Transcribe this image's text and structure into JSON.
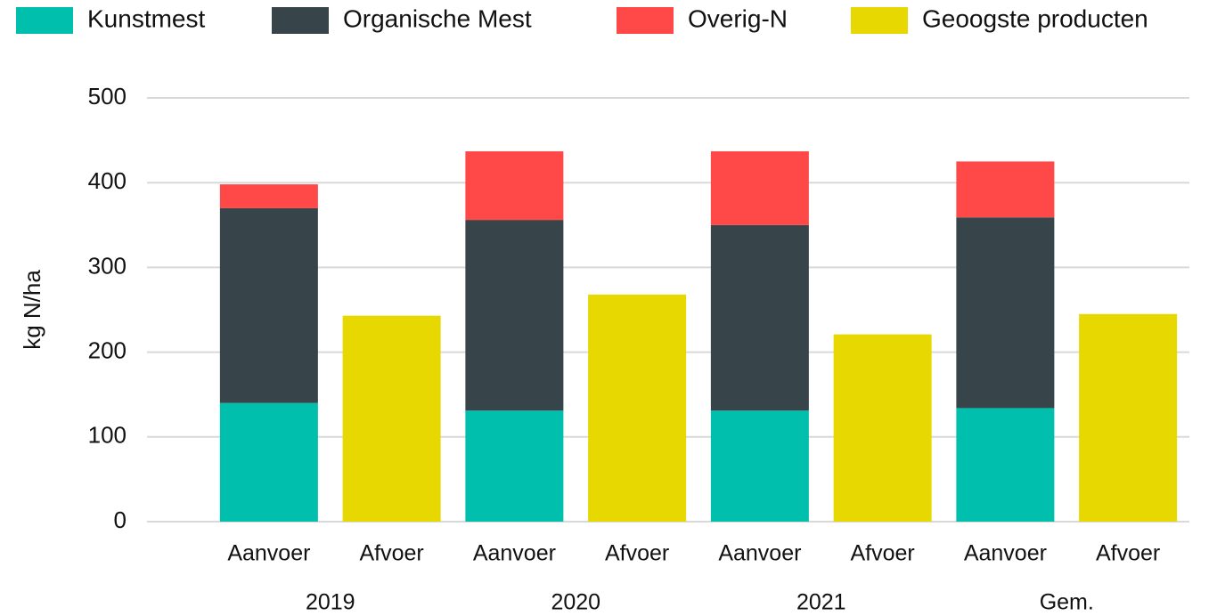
{
  "chart_data": {
    "type": "stacked_bar",
    "y_label": "kg N/ha",
    "categories": [
      "Aanvoer",
      "Afvoer",
      "Aanvoer",
      "Afvoer",
      "Aanvoer",
      "Afvoer",
      "Aanvoer",
      "Afvoer"
    ],
    "groups": [
      "2019",
      "2020",
      "2021",
      "Gem."
    ],
    "series": [
      {
        "name": "Kunstmest",
        "color": "#00bfad",
        "values": [
          140,
          null,
          131,
          null,
          131,
          null,
          134,
          null
        ]
      },
      {
        "name": "Organische Mest",
        "color": "#37454b",
        "values": [
          230,
          null,
          225,
          null,
          219,
          null,
          225,
          null
        ]
      },
      {
        "name": "Overig-N",
        "color": "#ff4848",
        "values": [
          28,
          null,
          81,
          null,
          87,
          null,
          66,
          null
        ]
      },
      {
        "name": "Geoogste producten",
        "color": "#e6d800",
        "values": [
          null,
          243,
          null,
          268,
          null,
          221,
          null,
          245
        ]
      }
    ],
    "ylim": [
      0,
      500
    ],
    "yticks": [
      0,
      100,
      200,
      300,
      400,
      500
    ],
    "grid": true,
    "legend": "top"
  }
}
